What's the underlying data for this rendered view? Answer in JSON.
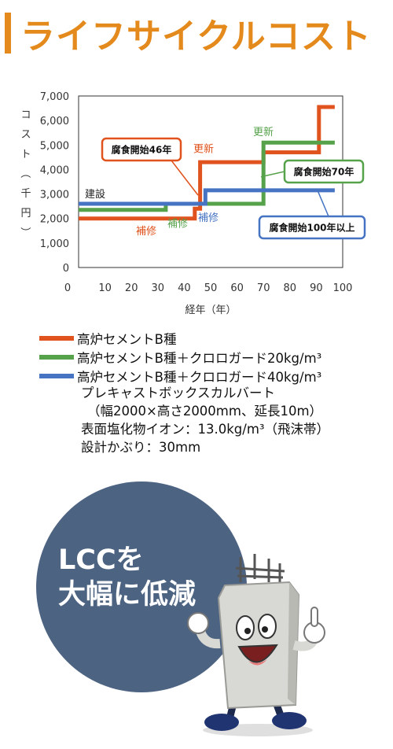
{
  "header": {
    "title": "ライフサイクルコスト"
  },
  "chart_data": {
    "type": "line",
    "ylabel_chars": [
      "コ",
      "ス",
      "ト",
      "（",
      "千",
      "円",
      "）"
    ],
    "xlabel": "経年（年）",
    "x_ticks": [
      0,
      10,
      20,
      30,
      40,
      50,
      60,
      70,
      80,
      90,
      100
    ],
    "y_ticks": [
      "0",
      "1,000",
      "2,000",
      "3,000",
      "4,000",
      "5,000",
      "6,000",
      "7,000"
    ],
    "xlim": [
      0,
      100
    ],
    "ylim": [
      0,
      7000
    ],
    "grid": false,
    "series": [
      {
        "name": "高炉セメントB種",
        "color": "#e0531e",
        "points": [
          [
            0,
            2000
          ],
          [
            44,
            2000
          ],
          [
            44,
            2400
          ],
          [
            46,
            2400
          ],
          [
            46,
            4300
          ],
          [
            70,
            4300
          ],
          [
            70,
            4700
          ],
          [
            91,
            4700
          ],
          [
            91,
            6550
          ],
          [
            97,
            6550
          ]
        ]
      },
      {
        "name": "高炉セメントB種＋クロロガード20kg/m³",
        "color": "#56a24b",
        "points": [
          [
            0,
            2350
          ],
          [
            33,
            2350
          ],
          [
            33,
            2600
          ],
          [
            70,
            2600
          ],
          [
            70,
            5100
          ],
          [
            97,
            5100
          ]
        ]
      },
      {
        "name": "高炉セメントB種＋クロロガード40kg/m³",
        "color": "#4674c3",
        "points": [
          [
            0,
            2600
          ],
          [
            48,
            2600
          ],
          [
            48,
            3150
          ],
          [
            97,
            3150
          ]
        ]
      }
    ],
    "annotations": {
      "build": "建設",
      "repair_orange": "補修",
      "repair_green": "補修",
      "repair_blue": "補修",
      "renew_orange": "更新",
      "renew_green": "更新",
      "callout_46": "腐食開始46年",
      "callout_70": "腐食開始70年",
      "callout_100": "腐食開始100年以上"
    }
  },
  "legend": [
    {
      "label": "高炉セメントB種",
      "color": "#e0531e"
    },
    {
      "label": "高炉セメントB種＋クロロガード20kg/m³",
      "color": "#56a24b"
    },
    {
      "label": "高炉セメントB種＋クロロガード40kg/m³",
      "color": "#4674c3"
    }
  ],
  "conditions": {
    "line1": "プレキャストボックスカルバート",
    "line2": "（幅2000×高さ2000mm、延長10m）",
    "line3": "表面塩化物イオン：13.0kg/m³（飛沫帯）",
    "line4": "設計かぶり：30mm"
  },
  "badge": {
    "line1": "LCCを",
    "line2": "大幅に低減"
  },
  "colors": {
    "accent": "#e48a1c",
    "badge_bg": "#4d6382"
  }
}
